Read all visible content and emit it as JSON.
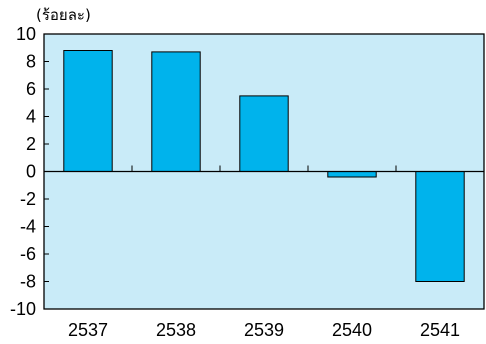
{
  "chart_data": {
    "type": "bar",
    "title": "",
    "xlabel": "",
    "ylabel": "(ร้อยละ)",
    "categories": [
      "2537",
      "2538",
      "2539",
      "2540",
      "2541"
    ],
    "values": [
      8.8,
      8.7,
      5.5,
      -0.4,
      -8.0
    ],
    "ylim": [
      -10,
      10
    ],
    "yticks": [
      10,
      8,
      6,
      4,
      2,
      0,
      -2,
      -4,
      -6,
      -8,
      -10
    ],
    "grid": false,
    "legend": "none",
    "colors": {
      "plot_background": "#c9ebf8",
      "bar_fill": "#00b3ec",
      "bar_stroke": "#000000",
      "axis": "#000000"
    }
  }
}
